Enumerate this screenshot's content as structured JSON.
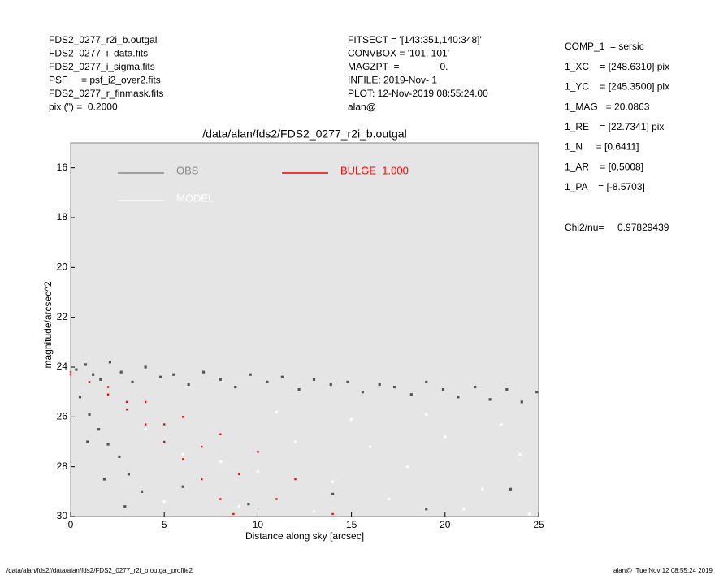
{
  "header_left": [
    "FDS2_0277_r2i_b.outgal",
    "FDS2_0277_i_data.fits",
    "FDS2_0277_i_sigma.fits",
    "PSF     = psf_i2_over2.fits",
    "FDS2_0277_r_finmask.fits",
    "pix (\") =  0.2000"
  ],
  "header_middle": [
    "FITSECT = '[143:351,140:348]'",
    "CONVBOX = '101, 101'",
    "MAGZPT  =               0.",
    "INFILE: 2019-Nov- 1",
    "PLOT: 12-Nov-2019 08:55:24.00",
    "alan@"
  ],
  "parameters": [
    "COMP_1  = sersic",
    "1_XC    = [248.6310] pix",
    "1_YC    = [245.3500] pix",
    "1_MAG   = 20.0863",
    "1_RE    = [22.7341] pix",
    "1_N     = [0.6411]",
    "1_AR    = [0.5008]",
    "1_PA    = [-8.5703]",
    "Chi2/nu=     0.97829439"
  ],
  "footer": {
    "left": "/data/alan/fds2//data/alan/fds2/FDS2_0277_r2i_b.outgal_profile2",
    "right": "alan@  Tue Nov 12 08:55:24 2019"
  },
  "chart_data": {
    "type": "scatter",
    "title": "/data/alan/fds2/FDS2_0277_r2i_b.outgal",
    "x_label": "Distance along sky [arcsec]",
    "y_label": "magnitude/arcsec^2",
    "xlim": [
      0,
      25
    ],
    "ylim": [
      30,
      15
    ],
    "xticks": [
      0,
      5,
      10,
      15,
      20,
      25
    ],
    "yticks": [
      16,
      18,
      20,
      22,
      24,
      26,
      28,
      30
    ],
    "background": "#e5e5e5",
    "series": [
      {
        "name": "OBS",
        "color": "#555555",
        "legend_color": "#888888",
        "x": [
          0.3,
          0.8,
          1.2,
          1.6,
          2.1,
          2.7,
          3.3,
          4.0,
          4.8,
          5.5,
          6.3,
          7.1,
          8.0,
          8.8,
          9.6,
          10.5,
          11.3,
          12.2,
          13.0,
          13.9,
          14.8,
          15.6,
          16.5,
          17.3,
          18.2,
          19.0,
          19.9,
          20.7,
          21.6,
          22.4,
          23.3,
          24.1,
          24.9,
          0.5,
          1.0,
          1.5,
          2.0,
          2.6,
          3.1,
          3.8,
          0.9,
          1.8,
          2.9,
          6.0,
          9.5,
          14.0,
          19.0,
          23.5
        ],
        "values": [
          24.1,
          23.9,
          24.3,
          24.5,
          23.8,
          24.2,
          24.6,
          24.0,
          24.4,
          24.3,
          24.7,
          24.2,
          24.5,
          24.8,
          24.3,
          24.6,
          24.4,
          24.9,
          24.5,
          24.7,
          24.6,
          25.0,
          24.7,
          24.8,
          25.1,
          24.6,
          24.9,
          25.2,
          24.8,
          25.3,
          24.9,
          25.4,
          25.0,
          25.2,
          25.9,
          26.5,
          27.1,
          27.6,
          28.3,
          29.0,
          27.0,
          28.5,
          29.6,
          28.8,
          29.5,
          29.1,
          29.7,
          28.9
        ]
      },
      {
        "name": "MODEL",
        "color": "#ffffff",
        "legend_color": "#ffffff",
        "x": [
          4,
          6,
          8,
          10,
          12,
          14,
          16,
          18,
          20,
          22,
          24,
          5,
          9,
          13,
          17,
          21,
          24.5,
          11,
          15,
          19,
          23
        ],
        "values": [
          26.5,
          27.5,
          27.8,
          28.2,
          27.0,
          28.6,
          27.2,
          28.0,
          26.8,
          28.9,
          27.5,
          29.4,
          29.6,
          29.8,
          29.3,
          29.7,
          29.9,
          25.8,
          26.1,
          25.9,
          26.3
        ]
      },
      {
        "name": "BULGE  1.000",
        "color": "#ff0000",
        "legend_color": "#ff0000",
        "x": [
          0,
          2,
          4,
          6,
          8,
          10,
          12,
          14,
          0,
          1,
          2,
          3,
          4,
          5,
          6,
          7,
          8,
          8.7,
          3,
          5,
          7,
          9,
          11
        ],
        "values": [
          24.2,
          24.8,
          25.4,
          26.0,
          26.7,
          27.4,
          28.5,
          29.9,
          24.3,
          24.6,
          25.1,
          25.7,
          26.3,
          27.0,
          27.7,
          28.5,
          29.3,
          29.9,
          25.4,
          26.3,
          27.2,
          28.3,
          29.3
        ]
      }
    ]
  }
}
